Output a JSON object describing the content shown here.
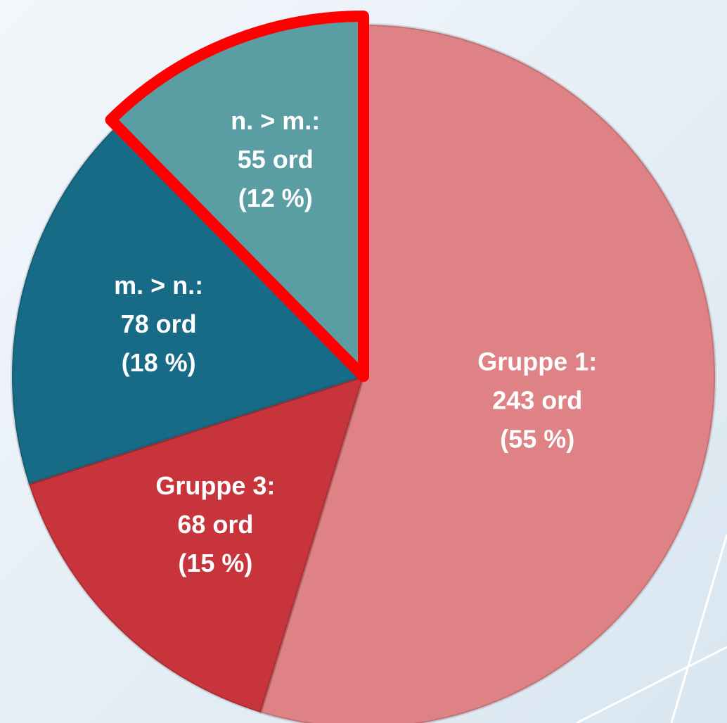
{
  "chart_data": {
    "type": "pie",
    "categories": [
      "Gruppe 1:",
      "Gruppe 3:",
      "m. > n.:",
      "n. > m.:"
    ],
    "values": [
      243,
      68,
      78,
      55
    ],
    "value_labels": [
      "243 ord",
      "68 ord",
      "78 ord",
      "55 ord"
    ],
    "percentages": [
      55,
      15,
      18,
      12
    ],
    "percentage_labels": [
      "(55 %)",
      "(15 %)",
      "(18 %)",
      "(12 %)"
    ],
    "colors": [
      "#de8286",
      "#c7343c",
      "#176b87",
      "#5a9ea3"
    ],
    "highlight": 3,
    "highlight_color": "#ff0000"
  }
}
